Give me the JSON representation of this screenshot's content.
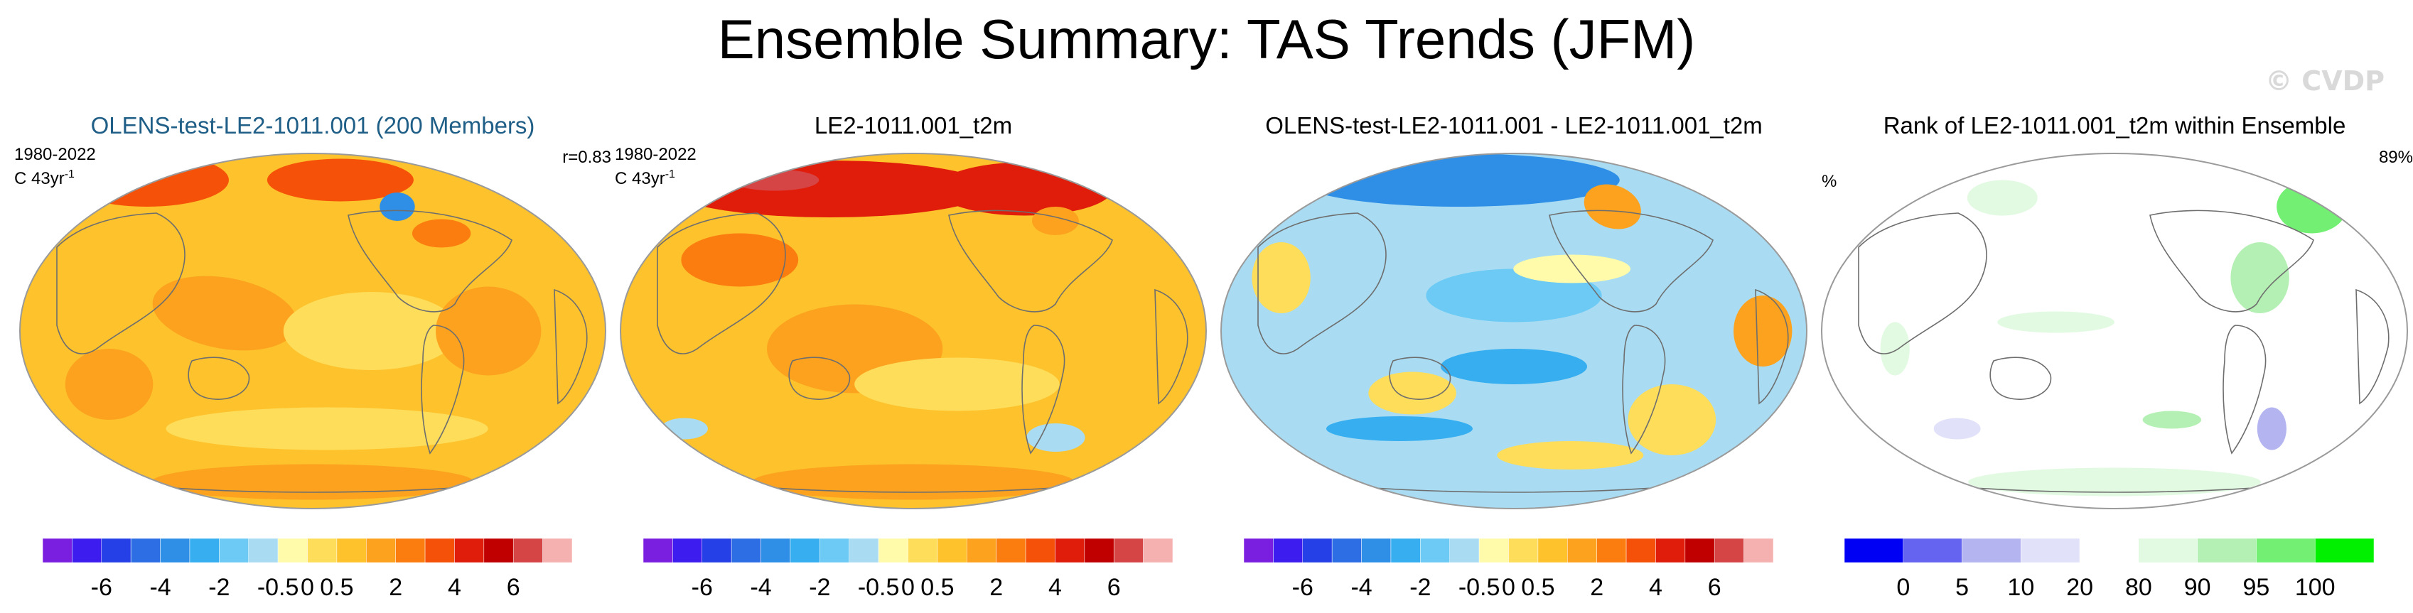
{
  "title": "Ensemble Summary: TAS Trends (JFM)",
  "watermark": "© CVDP",
  "panels": [
    {
      "title": "OLENS-test-LE2-1011.001 (200 Members)",
      "title_color": "#1f5e86",
      "period": "1980-2022",
      "units": "C 43yr",
      "units_sup": "-1",
      "corner": "r=0.83"
    },
    {
      "title": "LE2-1011.001_t2m",
      "title_color": "#000000",
      "period": "1980-2022",
      "units": "C 43yr",
      "units_sup": "-1",
      "corner": ""
    },
    {
      "title": "OLENS-test-LE2-1011.001 - LE2-1011.001_t2m",
      "title_color": "#000000",
      "period": "",
      "units": "",
      "units_sup": "",
      "corner": ""
    },
    {
      "title": "Rank of LE2-1011.001_t2m within Ensemble",
      "title_color": "#000000",
      "period": "",
      "units": "",
      "units_sup": "",
      "corner": "89%",
      "unit_label": "%"
    }
  ],
  "chart_data": [
    {
      "type": "heatmap",
      "title": "OLENS-test-LE2-1011.001 (200 Members)",
      "variable": "TAS trend",
      "units": "C 43yr-1",
      "period": "1980-2022",
      "correlation": 0.83,
      "dominant_range": [
        0.5,
        4
      ],
      "colorbar": {
        "labels": [
          "-6",
          "-4",
          "-2",
          "-0.5",
          "0",
          "0.5",
          "2",
          "4",
          "6"
        ],
        "levels": [
          -8,
          -7,
          -6,
          -5,
          -4,
          -3,
          -2,
          -1,
          -0.5,
          0,
          0.5,
          1,
          2,
          3,
          4,
          5,
          6,
          7,
          8
        ]
      }
    },
    {
      "type": "heatmap",
      "title": "LE2-1011.001_t2m",
      "variable": "TAS trend",
      "units": "C 43yr-1",
      "period": "1980-2022",
      "dominant_range": [
        0.5,
        6
      ],
      "colorbar": {
        "labels": [
          "-6",
          "-4",
          "-2",
          "-0.5",
          "0",
          "0.5",
          "2",
          "4",
          "6"
        ],
        "levels": [
          -8,
          -7,
          -6,
          -5,
          -4,
          -3,
          -2,
          -1,
          -0.5,
          0,
          0.5,
          1,
          2,
          3,
          4,
          5,
          6,
          7,
          8
        ]
      }
    },
    {
      "type": "heatmap",
      "title": "OLENS-test-LE2-1011.001 - LE2-1011.001_t2m",
      "variable": "TAS trend difference",
      "dominant_range": [
        -2,
        0.5
      ],
      "colorbar": {
        "labels": [
          "-6",
          "-4",
          "-2",
          "-0.5",
          "0",
          "0.5",
          "2",
          "4",
          "6"
        ],
        "levels": [
          -8,
          -7,
          -6,
          -5,
          -4,
          -3,
          -2,
          -1,
          -0.5,
          0,
          0.5,
          1,
          2,
          3,
          4,
          5,
          6,
          7,
          8
        ]
      }
    },
    {
      "type": "heatmap",
      "title": "Rank of LE2-1011.001_t2m within Ensemble",
      "variable": "rank",
      "units": "%",
      "area_fraction": "89%",
      "dominant_range": [
        20,
        80
      ],
      "colorbar": {
        "labels": [
          "0",
          "5",
          "10",
          "20",
          "80",
          "90",
          "95",
          "100"
        ],
        "levels": [
          0,
          5,
          10,
          20,
          80,
          90,
          95,
          100
        ]
      }
    }
  ],
  "colors": {
    "diverging": [
      "#7a1fe0",
      "#3d1cf0",
      "#2440e6",
      "#2e6ee4",
      "#2f8fe6",
      "#37aef0",
      "#6ccaf5",
      "#a9dcf2",
      "#fffbaa",
      "#fedd5a",
      "#fdc22c",
      "#fca21e",
      "#fb7d10",
      "#f55108",
      "#e01d0a",
      "#c00000",
      "#d64545",
      "#f5b0b0"
    ],
    "rank": [
      "#0000f5",
      "#6464f0",
      "#b4b4f0",
      "#e1e1fa",
      "#ffffff",
      "#e1fae1",
      "#b4f0b4",
      "#73f073",
      "#00f000"
    ],
    "coast": "#6e6e6e"
  }
}
